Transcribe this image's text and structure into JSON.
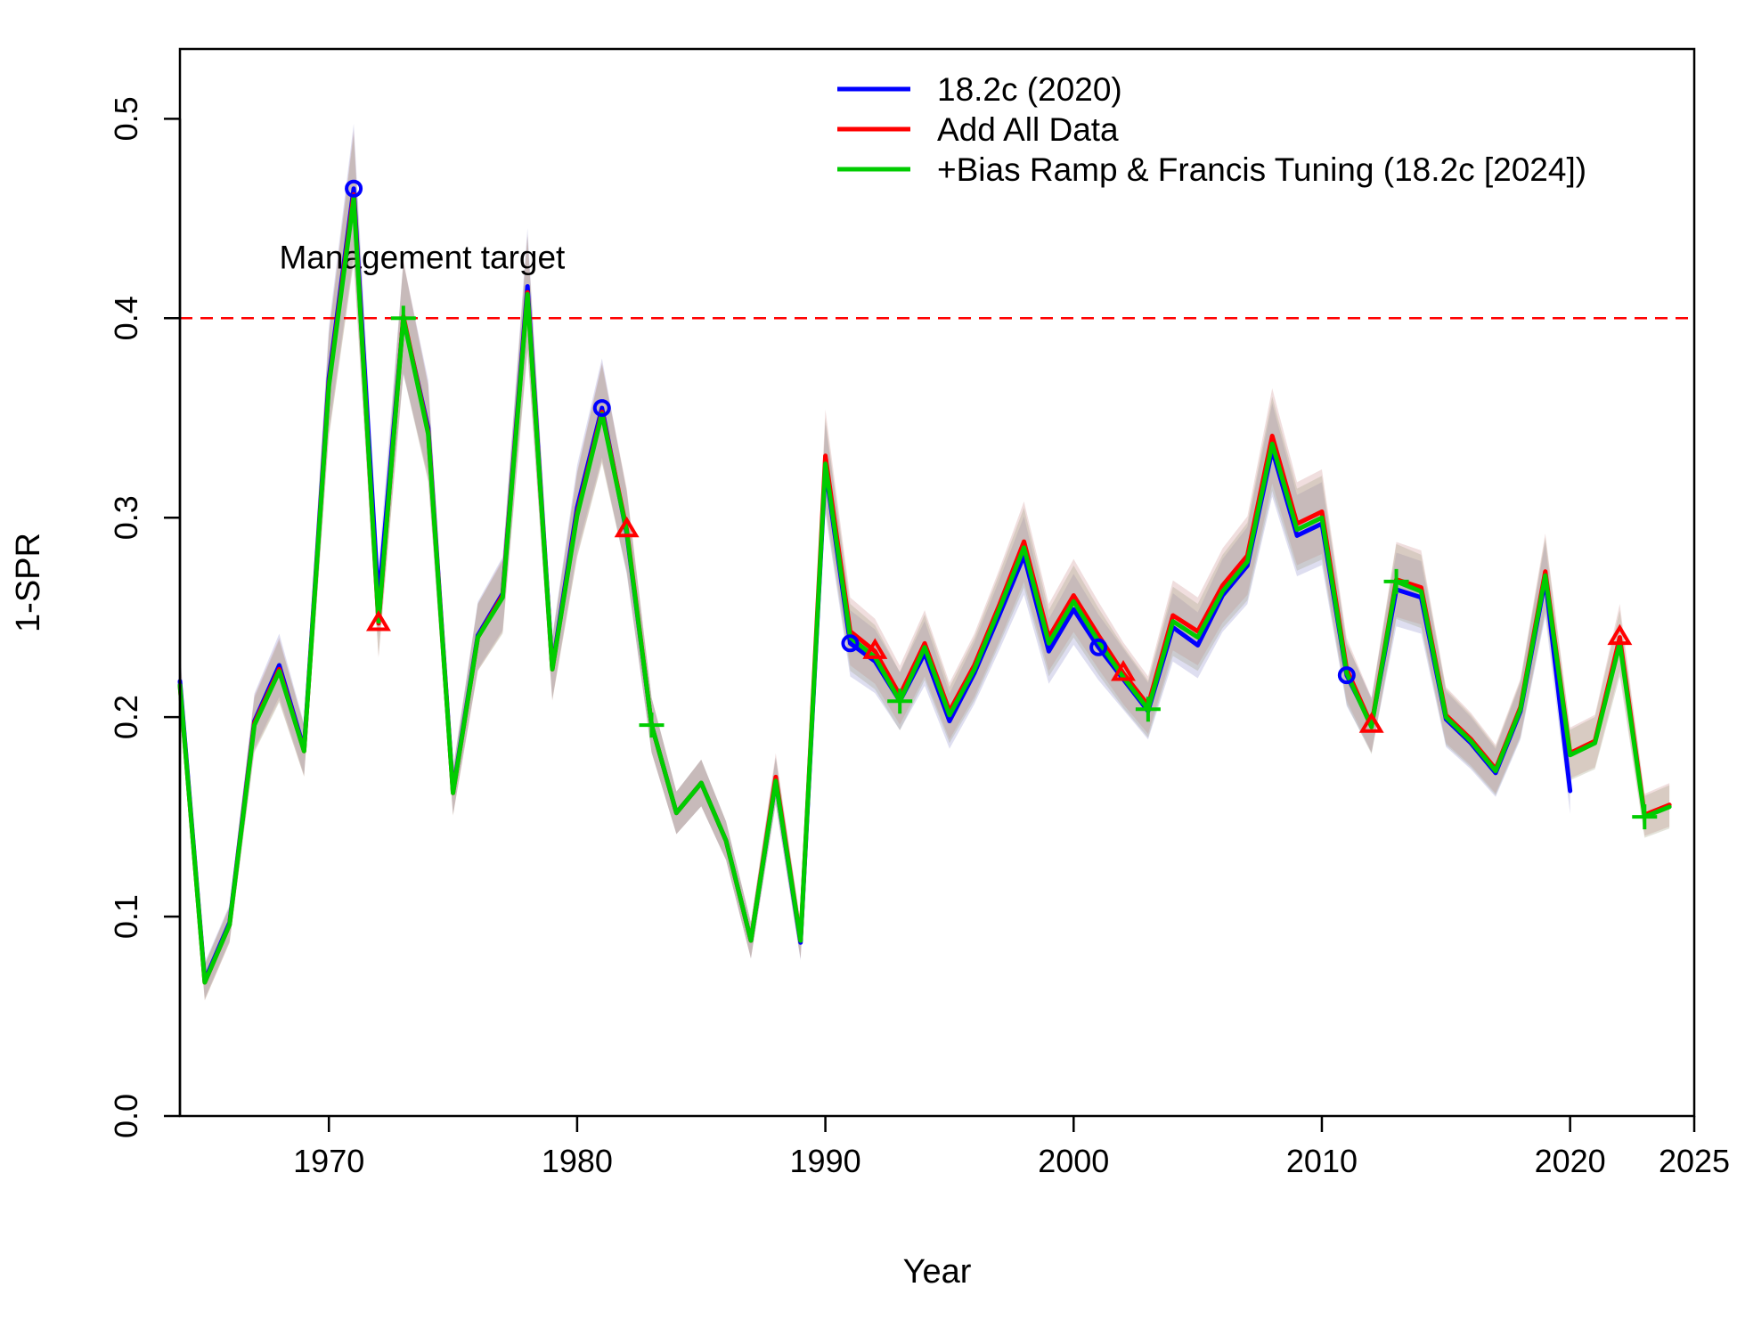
{
  "chart_data": {
    "type": "line",
    "title": "",
    "xlabel": "Year",
    "ylabel": "1-SPR",
    "xlim": [
      1964,
      2025
    ],
    "ylim": [
      0.0,
      0.535
    ],
    "x_ticks": [
      1970,
      1980,
      1990,
      2000,
      2010,
      2020,
      2025
    ],
    "x_tick_labels": [
      "1970",
      "1980",
      "1990",
      "2000",
      "2010",
      "2020",
      "2025"
    ],
    "y_ticks": [
      0.0,
      0.1,
      0.2,
      0.3,
      0.4,
      0.5
    ],
    "y_tick_labels": [
      "0.0",
      "0.1",
      "0.2",
      "0.3",
      "0.4",
      "0.5"
    ],
    "grid": false,
    "legend_position": "top-right",
    "reference_line": {
      "y": 0.4,
      "label": "Management target",
      "color": "#FF0000",
      "style": "dashed"
    },
    "series": [
      {
        "name": "18.2c (2020)",
        "color": "#0000FF",
        "marker": "circle",
        "marker_years": [
          1971,
          1981,
          1991,
          2001,
          2011
        ],
        "x": [
          1964,
          1965,
          1966,
          1967,
          1968,
          1969,
          1970,
          1971,
          1972,
          1973,
          1974,
          1975,
          1976,
          1977,
          1978,
          1979,
          1980,
          1981,
          1982,
          1983,
          1984,
          1985,
          1986,
          1987,
          1988,
          1989,
          1990,
          1991,
          1992,
          1993,
          1994,
          1995,
          1996,
          1997,
          1998,
          1999,
          2000,
          2001,
          2002,
          2003,
          2004,
          2005,
          2006,
          2007,
          2008,
          2009,
          2010,
          2011,
          2012,
          2013,
          2014,
          2015,
          2016,
          2017,
          2018,
          2019,
          2020
        ],
        "values": [
          0.218,
          0.068,
          0.097,
          0.198,
          0.226,
          0.184,
          0.37,
          0.465,
          0.258,
          0.4,
          0.345,
          0.163,
          0.241,
          0.262,
          0.416,
          0.225,
          0.305,
          0.355,
          0.292,
          0.196,
          0.152,
          0.167,
          0.138,
          0.088,
          0.168,
          0.087,
          0.325,
          0.237,
          0.228,
          0.208,
          0.232,
          0.198,
          0.222,
          0.251,
          0.281,
          0.233,
          0.254,
          0.235,
          0.219,
          0.203,
          0.245,
          0.236,
          0.261,
          0.276,
          0.334,
          0.291,
          0.297,
          0.221,
          0.196,
          0.264,
          0.26,
          0.199,
          0.187,
          0.172,
          0.203,
          0.269,
          0.163
        ]
      },
      {
        "name": "Add All Data",
        "color": "#FF0000",
        "marker": "triangle",
        "marker_years": [
          1972,
          1982,
          1992,
          2002,
          2012,
          2022
        ],
        "x": [
          1964,
          1965,
          1966,
          1967,
          1968,
          1969,
          1970,
          1971,
          1972,
          1973,
          1974,
          1975,
          1976,
          1977,
          1978,
          1979,
          1980,
          1981,
          1982,
          1983,
          1984,
          1985,
          1986,
          1987,
          1988,
          1989,
          1990,
          1991,
          1992,
          1993,
          1994,
          1995,
          1996,
          1997,
          1998,
          1999,
          2000,
          2001,
          2002,
          2003,
          2004,
          2005,
          2006,
          2007,
          2008,
          2009,
          2010,
          2011,
          2012,
          2013,
          2014,
          2015,
          2016,
          2017,
          2018,
          2019,
          2020,
          2021,
          2022,
          2023,
          2024
        ],
        "values": [
          0.216,
          0.067,
          0.096,
          0.197,
          0.224,
          0.183,
          0.367,
          0.462,
          0.247,
          0.401,
          0.343,
          0.162,
          0.24,
          0.261,
          0.413,
          0.224,
          0.302,
          0.353,
          0.294,
          0.196,
          0.152,
          0.167,
          0.138,
          0.088,
          0.17,
          0.088,
          0.331,
          0.243,
          0.233,
          0.211,
          0.237,
          0.203,
          0.226,
          0.256,
          0.288,
          0.24,
          0.261,
          0.241,
          0.222,
          0.206,
          0.251,
          0.243,
          0.266,
          0.281,
          0.341,
          0.297,
          0.303,
          0.224,
          0.196,
          0.269,
          0.265,
          0.201,
          0.189,
          0.174,
          0.205,
          0.273,
          0.182,
          0.188,
          0.24,
          0.151,
          0.156
        ]
      },
      {
        "name": "+Bias Ramp & Francis Tuning (18.2c [2024])",
        "color": "#00CC00",
        "marker": "plus",
        "marker_years": [
          1973,
          1983,
          1993,
          2003,
          2013,
          2023
        ],
        "x": [
          1964,
          1965,
          1966,
          1967,
          1968,
          1969,
          1970,
          1971,
          1972,
          1973,
          1974,
          1975,
          1976,
          1977,
          1978,
          1979,
          1980,
          1981,
          1982,
          1983,
          1984,
          1985,
          1986,
          1987,
          1988,
          1989,
          1990,
          1991,
          1992,
          1993,
          1994,
          1995,
          1996,
          1997,
          1998,
          1999,
          2000,
          2001,
          2002,
          2003,
          2004,
          2005,
          2006,
          2007,
          2008,
          2009,
          2010,
          2011,
          2012,
          2013,
          2014,
          2015,
          2016,
          2017,
          2018,
          2019,
          2020,
          2021,
          2022,
          2023,
          2024
        ],
        "values": [
          0.216,
          0.067,
          0.096,
          0.196,
          0.223,
          0.183,
          0.366,
          0.46,
          0.248,
          0.4,
          0.342,
          0.162,
          0.24,
          0.26,
          0.412,
          0.224,
          0.301,
          0.352,
          0.293,
          0.196,
          0.152,
          0.167,
          0.138,
          0.088,
          0.168,
          0.088,
          0.327,
          0.24,
          0.23,
          0.208,
          0.235,
          0.201,
          0.224,
          0.254,
          0.285,
          0.237,
          0.258,
          0.238,
          0.22,
          0.204,
          0.248,
          0.24,
          0.263,
          0.278,
          0.337,
          0.294,
          0.3,
          0.222,
          0.195,
          0.268,
          0.263,
          0.2,
          0.188,
          0.173,
          0.204,
          0.271,
          0.181,
          0.187,
          0.237,
          0.15,
          0.155
        ]
      }
    ]
  }
}
